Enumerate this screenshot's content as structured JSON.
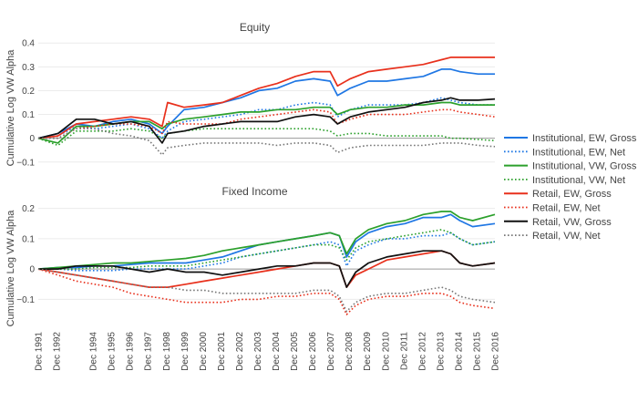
{
  "chart_data": {
    "type": "line",
    "y_axis_label": "Cumulative Log VW Alpha",
    "x_tick_labels": [
      "Dec 1991",
      "Dec 1992",
      "Dec 1994",
      "Dec 1995",
      "Dec 1996",
      "Dec 1997",
      "Dec 1998",
      "Dec 1999",
      "Dec 2000",
      "Dec 2001",
      "Dec 2002",
      "Dec 2003",
      "Dec 2004",
      "Dec 2005",
      "Dec 2006",
      "Dec 2007",
      "Dec 2008",
      "Dec 2009",
      "Dec 2010",
      "Dec 2011",
      "Dec 2012",
      "Dec 2013",
      "Dec 2014",
      "Dec 2015",
      "Dec 2016"
    ],
    "x_tick_years": [
      1991.92,
      1992.92,
      1994.92,
      1995.92,
      1996.92,
      1997.92,
      1998.92,
      1999.92,
      2000.92,
      2001.92,
      2002.92,
      2003.92,
      2004.92,
      2005.92,
      2006.92,
      2007.92,
      2008.92,
      2009.92,
      2010.92,
      2011.92,
      2012.92,
      2013.92,
      2014.92,
      2015.92,
      2016.92
    ],
    "x_range": [
      1991.92,
      2016.92
    ],
    "legend_position": "right",
    "legend": [
      {
        "name": "Institutional, EW, Gross",
        "color": "#1f77e4",
        "dash": "solid"
      },
      {
        "name": "Institutional, EW, Net",
        "color": "#1f77e4",
        "dash": "dot"
      },
      {
        "name": "Institutional, VW, Gross",
        "color": "#2ca02c",
        "dash": "solid"
      },
      {
        "name": "Institutional, VW, Net",
        "color": "#2ca02c",
        "dash": "dot"
      },
      {
        "name": "Retail, EW, Gross",
        "color": "#e8301c",
        "dash": "solid"
      },
      {
        "name": "Retail, EW, Net",
        "color": "#e8301c",
        "dash": "dot"
      },
      {
        "name": "Retail, VW, Gross",
        "color": "#111111",
        "dash": "solid"
      },
      {
        "name": "Retail, VW, Net",
        "color": "#777777",
        "dash": "dot"
      }
    ],
    "panels": [
      {
        "title": "Equity",
        "ylim": [
          -0.12,
          0.42
        ],
        "y_ticks": [
          -0.1,
          0,
          0.1,
          0.2,
          0.3,
          0.4
        ],
        "y_tick_labels": [
          "−0.1",
          "0",
          "0.1",
          "0.2",
          "0.3",
          "0.4"
        ],
        "x": [
          1991.92,
          1993,
          1994,
          1995,
          1996,
          1997,
          1998,
          1998.7,
          1999,
          1999.9,
          2001,
          2002,
          2003,
          2004,
          2005,
          2006,
          2007,
          2007.9,
          2008.3,
          2009,
          2010,
          2011,
          2012,
          2013,
          2014,
          2014.5,
          2015,
          2016,
          2016.92
        ],
        "series": [
          {
            "name": "Institutional, EW, Gross",
            "values": [
              0,
              0.02,
              0.06,
              0.05,
              0.07,
              0.08,
              0.06,
              0.02,
              0.05,
              0.12,
              0.13,
              0.15,
              0.17,
              0.2,
              0.21,
              0.24,
              0.25,
              0.24,
              0.18,
              0.21,
              0.24,
              0.24,
              0.25,
              0.26,
              0.29,
              0.29,
              0.28,
              0.27,
              0.27
            ]
          },
          {
            "name": "Institutional, EW, Net",
            "values": [
              0,
              0.01,
              0.05,
              0.04,
              0.05,
              0.06,
              0.04,
              0.0,
              0.03,
              0.07,
              0.08,
              0.09,
              0.1,
              0.12,
              0.12,
              0.14,
              0.15,
              0.14,
              0.09,
              0.12,
              0.14,
              0.14,
              0.14,
              0.15,
              0.17,
              0.16,
              0.15,
              0.14,
              0.14
            ]
          },
          {
            "name": "Institutional, VW, Gross",
            "values": [
              0,
              -0.02,
              0.05,
              0.05,
              0.06,
              0.07,
              0.07,
              0.04,
              0.06,
              0.08,
              0.09,
              0.1,
              0.11,
              0.11,
              0.12,
              0.12,
              0.13,
              0.13,
              0.1,
              0.12,
              0.13,
              0.13,
              0.14,
              0.14,
              0.15,
              0.15,
              0.14,
              0.14,
              0.14
            ]
          },
          {
            "name": "Institutional, VW, Net",
            "values": [
              0,
              -0.03,
              0.03,
              0.03,
              0.03,
              0.04,
              0.03,
              0.0,
              0.02,
              0.03,
              0.04,
              0.04,
              0.04,
              0.04,
              0.04,
              0.04,
              0.04,
              0.03,
              0.01,
              0.02,
              0.02,
              0.01,
              0.01,
              0.01,
              0.01,
              0.0,
              0.0,
              -0.005,
              -0.01
            ]
          },
          {
            "name": "Retail, EW, Gross",
            "values": [
              0,
              0.01,
              0.06,
              0.07,
              0.08,
              0.09,
              0.08,
              0.05,
              0.15,
              0.13,
              0.14,
              0.15,
              0.18,
              0.21,
              0.23,
              0.26,
              0.28,
              0.28,
              0.22,
              0.25,
              0.28,
              0.29,
              0.3,
              0.31,
              0.33,
              0.34,
              0.34,
              0.34,
              0.34
            ]
          },
          {
            "name": "Retail, EW, Net",
            "values": [
              0,
              0.0,
              0.04,
              0.05,
              0.06,
              0.06,
              0.05,
              0.02,
              0.07,
              0.06,
              0.06,
              0.06,
              0.08,
              0.09,
              0.1,
              0.11,
              0.12,
              0.11,
              0.06,
              0.08,
              0.1,
              0.1,
              0.1,
              0.11,
              0.12,
              0.12,
              0.11,
              0.1,
              0.09
            ]
          },
          {
            "name": "Retail, VW, Gross",
            "values": [
              0,
              0.02,
              0.08,
              0.08,
              0.06,
              0.07,
              0.05,
              -0.02,
              0.02,
              0.03,
              0.05,
              0.06,
              0.07,
              0.07,
              0.07,
              0.09,
              0.1,
              0.09,
              0.06,
              0.09,
              0.11,
              0.12,
              0.13,
              0.15,
              0.16,
              0.17,
              0.16,
              0.16,
              0.165
            ]
          },
          {
            "name": "Retail, VW, Net",
            "values": [
              0,
              0.0,
              0.04,
              0.04,
              0.02,
              0.01,
              -0.01,
              -0.07,
              -0.04,
              -0.03,
              -0.02,
              -0.02,
              -0.02,
              -0.02,
              -0.03,
              -0.02,
              -0.02,
              -0.03,
              -0.06,
              -0.04,
              -0.03,
              -0.03,
              -0.03,
              -0.03,
              -0.02,
              -0.02,
              -0.02,
              -0.03,
              -0.035
            ]
          }
        ]
      },
      {
        "title": "Fixed Income",
        "ylim": [
          -0.18,
          0.22
        ],
        "y_ticks": [
          -0.1,
          0,
          0.1,
          0.2
        ],
        "y_tick_labels": [
          "−0.1",
          "0",
          "0.1",
          "0.2"
        ],
        "x": [
          1991.92,
          1993,
          1994,
          1995,
          1996,
          1997,
          1998,
          1999,
          2000,
          2001,
          2002,
          2003,
          2004,
          2005,
          2006,
          2007,
          2007.9,
          2008.4,
          2008.8,
          2009.3,
          2010,
          2011,
          2012,
          2013,
          2014,
          2014.5,
          2015,
          2015.7,
          2016.92
        ],
        "series": [
          {
            "name": "Institutional, EW, Gross",
            "values": [
              0,
              0.005,
              0.005,
              0.01,
              0.01,
              0.015,
              0.02,
              0.02,
              0.02,
              0.03,
              0.04,
              0.06,
              0.08,
              0.09,
              0.1,
              0.11,
              0.12,
              0.11,
              0.04,
              0.09,
              0.12,
              0.14,
              0.15,
              0.17,
              0.17,
              0.18,
              0.16,
              0.14,
              0.15
            ]
          },
          {
            "name": "Institutional, EW, Net",
            "values": [
              0,
              0.0,
              -0.005,
              -0.005,
              -0.005,
              0.0,
              0.0,
              0.0,
              0.0,
              0.01,
              0.02,
              0.04,
              0.05,
              0.06,
              0.07,
              0.08,
              0.09,
              0.08,
              0.01,
              0.06,
              0.08,
              0.1,
              0.1,
              0.11,
              0.11,
              0.12,
              0.1,
              0.08,
              0.09
            ]
          },
          {
            "name": "Institutional, VW, Gross",
            "values": [
              0,
              0.005,
              0.01,
              0.015,
              0.02,
              0.02,
              0.025,
              0.03,
              0.035,
              0.045,
              0.06,
              0.07,
              0.08,
              0.09,
              0.1,
              0.11,
              0.12,
              0.11,
              0.05,
              0.1,
              0.13,
              0.15,
              0.16,
              0.18,
              0.19,
              0.19,
              0.17,
              0.16,
              0.18
            ]
          },
          {
            "name": "Institutional, VW, Net",
            "values": [
              0,
              0.0,
              0.0,
              0.005,
              0.005,
              0.005,
              0.01,
              0.01,
              0.01,
              0.02,
              0.03,
              0.04,
              0.05,
              0.06,
              0.07,
              0.08,
              0.08,
              0.07,
              0.03,
              0.07,
              0.09,
              0.1,
              0.11,
              0.12,
              0.13,
              0.12,
              0.1,
              0.08,
              0.09
            ]
          },
          {
            "name": "Retail, EW, Gross",
            "values": [
              0,
              -0.01,
              -0.02,
              -0.03,
              -0.04,
              -0.05,
              -0.06,
              -0.06,
              -0.05,
              -0.04,
              -0.03,
              -0.02,
              -0.01,
              0.0,
              0.01,
              0.02,
              0.02,
              0.01,
              -0.06,
              -0.02,
              0.0,
              0.03,
              0.04,
              0.05,
              0.06,
              0.05,
              0.02,
              0.01,
              0.02
            ]
          },
          {
            "name": "Retail, EW, Net",
            "values": [
              0,
              -0.02,
              -0.04,
              -0.05,
              -0.06,
              -0.08,
              -0.09,
              -0.1,
              -0.11,
              -0.11,
              -0.11,
              -0.1,
              -0.1,
              -0.09,
              -0.09,
              -0.08,
              -0.08,
              -0.1,
              -0.15,
              -0.12,
              -0.1,
              -0.09,
              -0.09,
              -0.08,
              -0.08,
              -0.09,
              -0.11,
              -0.12,
              -0.13
            ]
          },
          {
            "name": "Retail, VW, Gross",
            "values": [
              0,
              0.0,
              0.01,
              0.01,
              0.01,
              0.0,
              -0.01,
              0.0,
              -0.01,
              -0.01,
              -0.02,
              -0.01,
              0.0,
              0.01,
              0.01,
              0.02,
              0.02,
              0.01,
              -0.06,
              -0.01,
              0.02,
              0.04,
              0.05,
              0.06,
              0.06,
              0.05,
              0.02,
              0.01,
              0.02
            ]
          },
          {
            "name": "Retail, VW, Net",
            "values": [
              0,
              -0.01,
              -0.02,
              -0.03,
              -0.04,
              -0.05,
              -0.06,
              -0.06,
              -0.07,
              -0.07,
              -0.08,
              -0.08,
              -0.08,
              -0.08,
              -0.08,
              -0.07,
              -0.07,
              -0.09,
              -0.14,
              -0.11,
              -0.09,
              -0.08,
              -0.08,
              -0.07,
              -0.06,
              -0.07,
              -0.09,
              -0.1,
              -0.11
            ]
          }
        ]
      }
    ]
  }
}
